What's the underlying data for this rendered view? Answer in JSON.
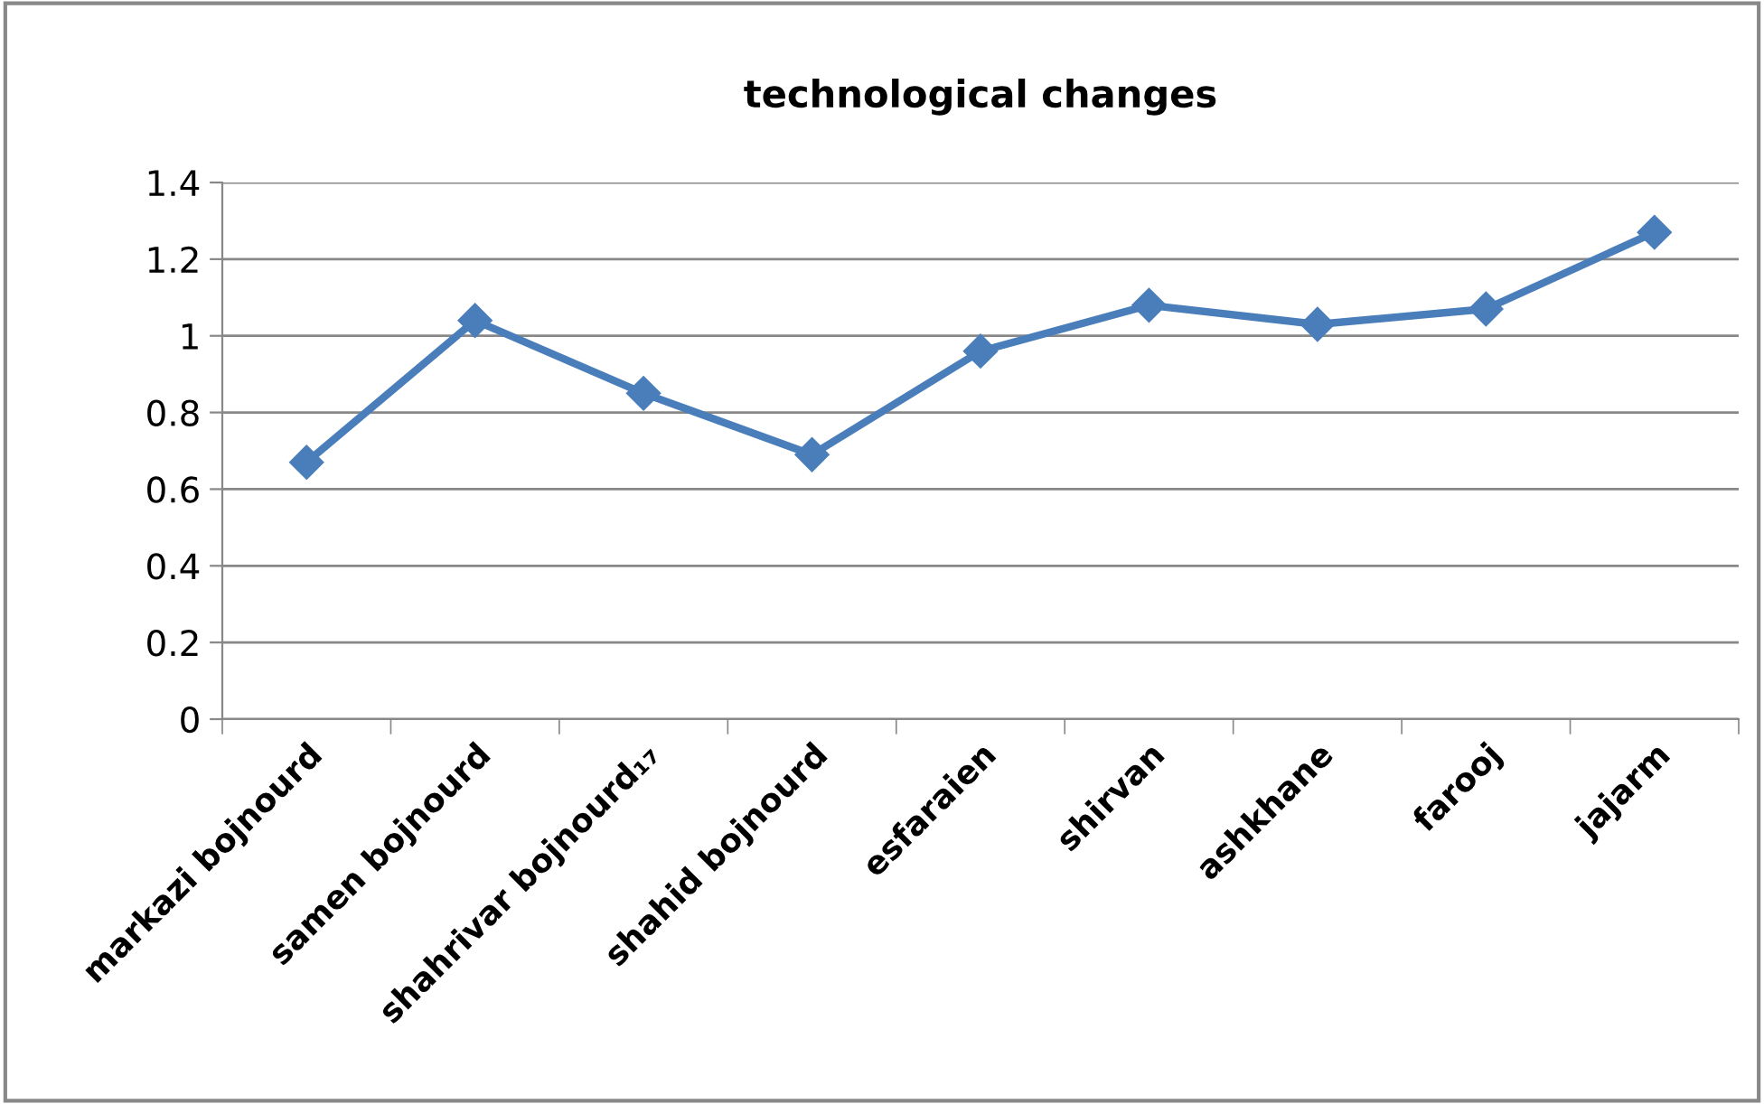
{
  "chart_data": {
    "type": "line",
    "title": "technological changes",
    "categories": [
      "markazi bojnourd",
      "samen bojnourd",
      "shahrivar bojnourd₁₇",
      "shahid bojnourd",
      "esfaraien",
      "shirvan",
      "ashkhane",
      "farooj",
      "jajarm"
    ],
    "series": [
      {
        "color": "#4a7ebb",
        "values": [
          0.67,
          1.04,
          0.85,
          0.69,
          0.96,
          1.08,
          1.03,
          1.07,
          1.27
        ]
      }
    ],
    "ylim": [
      0,
      1.4
    ],
    "yticks": [
      0,
      0.2,
      0.4,
      0.6,
      0.8,
      1,
      1.2,
      1.4
    ],
    "grid": "y",
    "legend": false,
    "marker": "diamond",
    "line_style": "solid"
  }
}
